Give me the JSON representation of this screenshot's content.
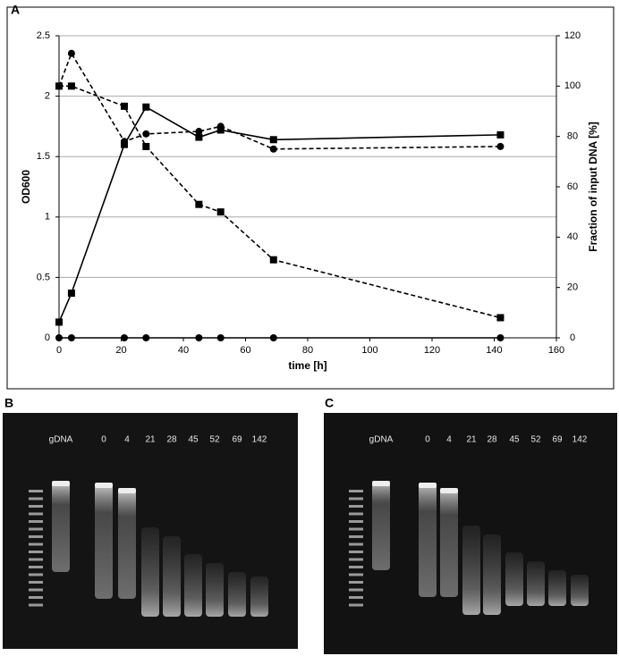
{
  "chart_data": {
    "type": "line",
    "panel_label": "A",
    "x_label": "time [h]",
    "y_label": "OD600",
    "y2_label": "Fraction of input DNA [%]",
    "x": [
      0,
      4,
      21,
      28,
      45,
      52,
      69,
      142
    ],
    "xlim": [
      0,
      160
    ],
    "xticks": [
      0,
      20,
      40,
      60,
      80,
      100,
      120,
      140,
      160
    ],
    "ylim": [
      0,
      2.5
    ],
    "yticks": [
      0,
      0.5,
      1,
      1.5,
      2,
      2.5
    ],
    "y2lim": [
      0,
      120
    ],
    "y2ticks": [
      0,
      20,
      40,
      60,
      80,
      100,
      120
    ],
    "grid": true,
    "series": [
      {
        "color": "#000000",
        "marker": "square",
        "dashed": false,
        "values": [
          0.13,
          0.37,
          1.6,
          1.91,
          1.66,
          1.72,
          1.64,
          1.68
        ]
      },
      {
        "color": "#000000",
        "marker": "circle",
        "dashed": false,
        "values": [
          0,
          0,
          0,
          0,
          0,
          0,
          0,
          0
        ]
      },
      {
        "color": "#000000",
        "marker": "circle",
        "dashed": true,
        "axis": "y2",
        "values": [
          100,
          113,
          78,
          81,
          82,
          84,
          75,
          76
        ]
      },
      {
        "color": "#000000",
        "marker": "square",
        "dashed": true,
        "axis": "y2",
        "values": [
          100,
          100,
          92,
          76,
          53,
          50,
          31,
          8
        ]
      }
    ]
  },
  "gels": [
    {
      "label": "B",
      "lanes": [
        "gDNA",
        "0",
        "4",
        "21",
        "28",
        "45",
        "52",
        "69",
        "142"
      ]
    },
    {
      "label": "C",
      "lanes": [
        "gDNA",
        "0",
        "4",
        "21",
        "28",
        "45",
        "52",
        "69",
        "142"
      ]
    }
  ]
}
